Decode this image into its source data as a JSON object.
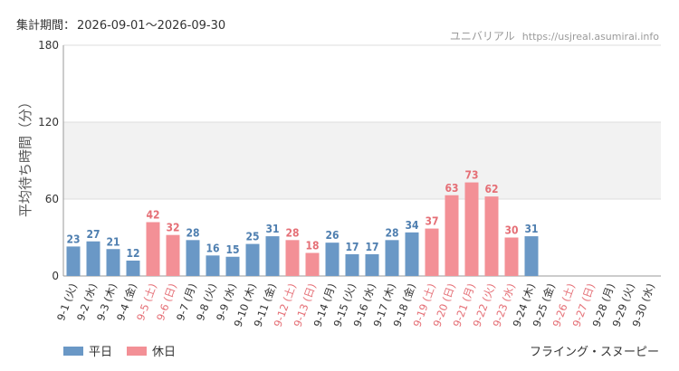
{
  "header": {
    "period_label": "集計期間：",
    "period_value": "2026-09-01～2026-09-30",
    "site_name": "ユニバリアル",
    "site_url": "https://usjreal.asumirai.info"
  },
  "footer": {
    "attraction": "フライング・スヌーピー"
  },
  "colors": {
    "weekday": "#6a98c6",
    "holiday": "#f39096",
    "weekday_label": "#4f7fb0",
    "holiday_label": "#e56f76",
    "band": "#f2f2f2"
  },
  "chart_data": {
    "type": "bar",
    "title": "",
    "xlabel": "",
    "ylabel": "平均待ち時間（分）",
    "ylim": [
      0,
      180
    ],
    "yticks": [
      0,
      60,
      120,
      180
    ],
    "shaded_band": [
      60,
      120
    ],
    "legend": {
      "position": "bottom-left",
      "entries": [
        {
          "name": "平日",
          "key": "weekday"
        },
        {
          "name": "休日",
          "key": "holiday"
        }
      ]
    },
    "categories": [
      "9-1 (火)",
      "9-2 (水)",
      "9-3 (木)",
      "9-4 (金)",
      "9-5 (土)",
      "9-6 (日)",
      "9-7 (月)",
      "9-8 (火)",
      "9-9 (水)",
      "9-10 (木)",
      "9-11 (金)",
      "9-12 (土)",
      "9-13 (日)",
      "9-14 (月)",
      "9-15 (火)",
      "9-16 (水)",
      "9-17 (木)",
      "9-18 (金)",
      "9-19 (土)",
      "9-20 (日)",
      "9-21 (月)",
      "9-22 (火)",
      "9-23 (水)",
      "9-24 (木)",
      "9-25 (金)",
      "9-26 (土)",
      "9-27 (日)",
      "9-28 (月)",
      "9-29 (火)",
      "9-30 (水)"
    ],
    "values": [
      23,
      27,
      21,
      12,
      42,
      32,
      28,
      16,
      15,
      25,
      31,
      28,
      18,
      26,
      17,
      17,
      28,
      34,
      37,
      63,
      73,
      62,
      30,
      31,
      null,
      null,
      null,
      null,
      null,
      null
    ],
    "day_type": [
      "weekday",
      "weekday",
      "weekday",
      "weekday",
      "holiday",
      "holiday",
      "weekday",
      "weekday",
      "weekday",
      "weekday",
      "weekday",
      "holiday",
      "holiday",
      "weekday",
      "weekday",
      "weekday",
      "weekday",
      "weekday",
      "holiday",
      "holiday",
      "holiday",
      "holiday",
      "holiday",
      "weekday",
      "weekday",
      "holiday",
      "holiday",
      "weekday",
      "weekday",
      "weekday"
    ]
  }
}
